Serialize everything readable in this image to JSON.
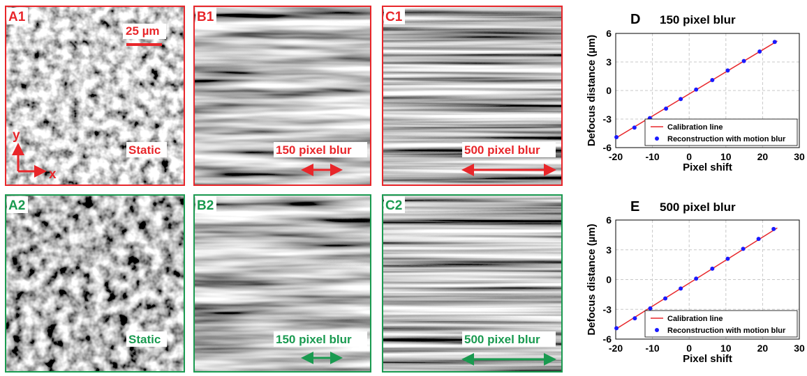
{
  "panels": [
    {
      "label": "A1",
      "scale_bar": "25 µm",
      "axis_y": "y",
      "axis_x": "x",
      "caption": "Static"
    },
    {
      "label": "B1",
      "caption": "150 pixel blur"
    },
    {
      "label": "C1",
      "caption": "500 pixel blur"
    },
    {
      "label": "A2",
      "caption": "Static"
    },
    {
      "label": "B2",
      "caption": "150 pixel blur"
    },
    {
      "label": "C2",
      "caption": "500 pixel blur"
    }
  ],
  "chart_data": [
    {
      "type": "scatter",
      "panel_label": "D",
      "title": "150 pixel blur",
      "x_label": "Pixel shift",
      "y_label": "Defocus distance (µm)",
      "xlim": [
        -20,
        30
      ],
      "xticks": [
        -20,
        -10,
        0,
        10,
        20,
        30
      ],
      "ylim": [
        -6,
        6
      ],
      "yticks": [
        -6,
        -3,
        0,
        3,
        6
      ],
      "grid": true,
      "legend": "lower right",
      "series": [
        {
          "name": "Calibration line",
          "color": "#e8262a",
          "style": "line",
          "x": [
            -20,
            24
          ],
          "values": [
            -5,
            5.2
          ]
        },
        {
          "name": "Reconstruction with motion blur",
          "color": "#1a1aff",
          "style": "points",
          "x": [
            -19.8,
            -14.9,
            -10.7,
            -6.3,
            -2.3,
            1.9,
            6.3,
            10.5,
            14.9,
            19.2,
            23.3
          ],
          "values": [
            -4.9,
            -3.9,
            -2.9,
            -1.9,
            -0.9,
            0.1,
            1.1,
            2.1,
            3.1,
            4.1,
            5.1
          ]
        }
      ]
    },
    {
      "type": "scatter",
      "panel_label": "E",
      "title": "500 pixel blur",
      "x_label": "Pixel shift",
      "y_label": "Defocus distance (µm)",
      "xlim": [
        -20,
        30
      ],
      "xticks": [
        -20,
        -10,
        0,
        10,
        20,
        30
      ],
      "ylim": [
        -6,
        6
      ],
      "yticks": [
        -6,
        -3,
        0,
        3,
        6
      ],
      "grid": true,
      "legend": "lower right",
      "series": [
        {
          "name": "Calibration line",
          "color": "#e8262a",
          "style": "line",
          "x": [
            -20,
            24
          ],
          "values": [
            -5,
            5.2
          ]
        },
        {
          "name": "Reconstruction with motion blur",
          "color": "#1a1aff",
          "style": "points",
          "x": [
            -19.8,
            -14.8,
            -10.6,
            -6.5,
            -2.3,
            1.9,
            6.3,
            10.5,
            14.7,
            18.9,
            23.0
          ],
          "values": [
            -4.9,
            -3.9,
            -2.9,
            -1.9,
            -0.9,
            0.1,
            1.1,
            2.1,
            3.1,
            4.1,
            5.1
          ]
        }
      ]
    }
  ]
}
